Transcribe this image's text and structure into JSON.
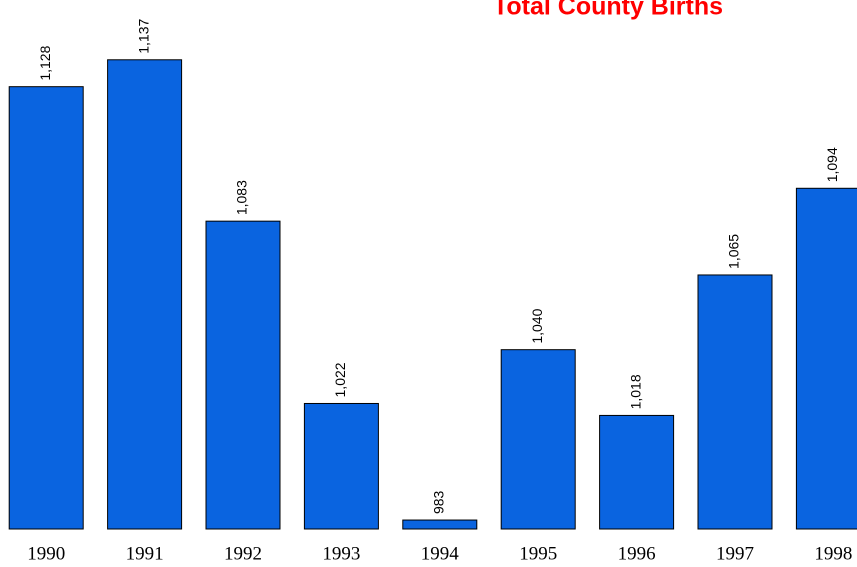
{
  "chart_data": {
    "type": "bar",
    "title": "Total County Births",
    "categories": [
      "1990",
      "1991",
      "1992",
      "1993",
      "1994",
      "1995",
      "1996",
      "1997",
      "1998"
    ],
    "values": [
      1128,
      1137,
      1083,
      1022,
      983,
      1040,
      1018,
      1065,
      1094
    ],
    "value_labels": [
      "1,128",
      "1,137",
      "1,083",
      "1,022",
      "983",
      "1,040",
      "1,018",
      "1,065",
      "1,094"
    ],
    "color": "#0a64e0",
    "ylim": [
      980,
      1157
    ]
  }
}
